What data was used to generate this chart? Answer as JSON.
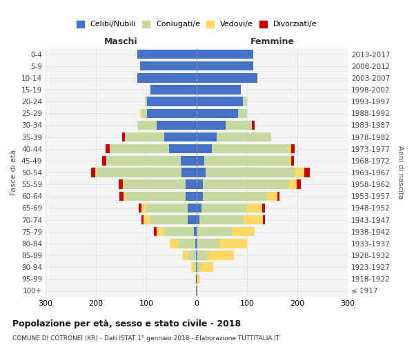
{
  "age_groups": [
    "100+",
    "95-99",
    "90-94",
    "85-89",
    "80-84",
    "75-79",
    "70-74",
    "65-69",
    "60-64",
    "55-59",
    "50-54",
    "45-49",
    "40-44",
    "35-39",
    "30-34",
    "25-29",
    "20-24",
    "15-19",
    "10-14",
    "5-9",
    "0-4"
  ],
  "birth_years": [
    "≤ 1917",
    "1918-1922",
    "1923-1927",
    "1928-1932",
    "1933-1937",
    "1938-1942",
    "1943-1947",
    "1948-1952",
    "1953-1957",
    "1958-1962",
    "1963-1967",
    "1968-1972",
    "1973-1977",
    "1978-1982",
    "1983-1987",
    "1988-1992",
    "1993-1997",
    "1998-2002",
    "2003-2007",
    "2008-2012",
    "2013-2017"
  ],
  "colors": {
    "celibi": "#4472C4",
    "coniugati": "#c5d9a0",
    "vedovi": "#FFD966",
    "divorziati": "#CC0000"
  },
  "maschi": {
    "celibi": [
      1,
      1,
      1,
      2,
      3,
      5,
      18,
      18,
      22,
      22,
      30,
      32,
      55,
      65,
      80,
      98,
      98,
      92,
      118,
      112,
      118
    ],
    "coniugati": [
      0,
      0,
      5,
      15,
      32,
      60,
      75,
      82,
      118,
      122,
      168,
      148,
      118,
      78,
      38,
      12,
      5,
      0,
      0,
      0,
      0
    ],
    "vedovi": [
      0,
      2,
      5,
      10,
      18,
      15,
      12,
      10,
      5,
      3,
      3,
      0,
      0,
      0,
      0,
      3,
      0,
      0,
      0,
      0,
      0
    ],
    "divorziati": [
      0,
      0,
      0,
      0,
      0,
      5,
      5,
      5,
      8,
      8,
      8,
      8,
      8,
      5,
      0,
      0,
      0,
      0,
      0,
      0,
      0
    ]
  },
  "femmine": {
    "celibi": [
      0,
      0,
      0,
      0,
      0,
      0,
      5,
      10,
      12,
      12,
      18,
      15,
      30,
      40,
      58,
      82,
      92,
      88,
      120,
      112,
      112
    ],
    "coniugati": [
      0,
      2,
      8,
      22,
      45,
      70,
      88,
      90,
      128,
      172,
      178,
      168,
      152,
      108,
      52,
      18,
      8,
      0,
      0,
      0,
      0
    ],
    "vedovi": [
      2,
      5,
      25,
      52,
      55,
      45,
      38,
      30,
      20,
      15,
      18,
      5,
      5,
      0,
      0,
      0,
      0,
      0,
      0,
      0,
      0
    ],
    "divorziati": [
      0,
      0,
      0,
      0,
      0,
      0,
      5,
      5,
      5,
      8,
      10,
      5,
      8,
      0,
      5,
      0,
      0,
      0,
      0,
      0,
      0
    ]
  },
  "title": "Popolazione per età, sesso e stato civile - 2018",
  "subtitle": "COMUNE DI COTRONEI (KR) - Dati ISTAT 1° gennaio 2018 - Elaborazione TUTTITALIA.IT",
  "ylabel": "Fasce di età",
  "y2label": "Anni di nascita",
  "xlabel_left": "Maschi",
  "xlabel_right": "Femmine",
  "xlim": 300,
  "legend_labels": [
    "Celibi/Nubili",
    "Coniugati/e",
    "Vedovi/e",
    "Divorziati/e"
  ],
  "bg_color": "#ffffff",
  "plot_bg_color": "#f4f4f4"
}
